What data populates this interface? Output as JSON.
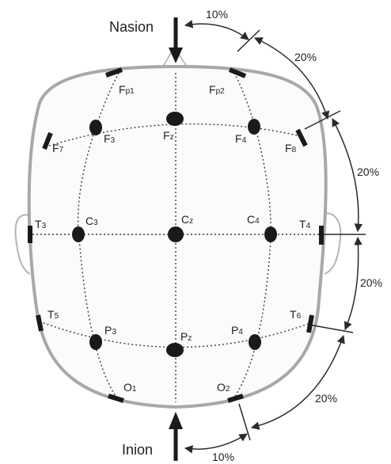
{
  "landmarks": {
    "top": "Nasion",
    "bottom": "Inion"
  },
  "electrodes": {
    "fp1": {
      "main": "F",
      "sub": "p1"
    },
    "fp2": {
      "main": "F",
      "sub": "p2"
    },
    "f7": {
      "main": "F",
      "sub": "7"
    },
    "f3": {
      "main": "F",
      "sub": "3"
    },
    "fz": {
      "main": "F",
      "sub": "z"
    },
    "f4": {
      "main": "F",
      "sub": "4"
    },
    "f8": {
      "main": "F",
      "sub": "8"
    },
    "t3": {
      "main": "T",
      "sub": "3"
    },
    "c3": {
      "main": "C",
      "sub": "3"
    },
    "cz": {
      "main": "C",
      "sub": "z"
    },
    "c4": {
      "main": "C",
      "sub": "4"
    },
    "t4": {
      "main": "T",
      "sub": "4"
    },
    "t5": {
      "main": "T",
      "sub": "5"
    },
    "p3": {
      "main": "P",
      "sub": "3"
    },
    "pz": {
      "main": "P",
      "sub": "z"
    },
    "p4": {
      "main": "P",
      "sub": "4"
    },
    "t6": {
      "main": "T",
      "sub": "6"
    },
    "o1": {
      "main": "O",
      "sub": "1"
    },
    "o2": {
      "main": "O",
      "sub": "2"
    }
  },
  "distances": {
    "top": "10%",
    "upper": "20%",
    "middle_upper": "20%",
    "middle_lower": "20%",
    "lower": "20%",
    "bottom": "10%"
  },
  "colors": {
    "outline": "#a8a8a8",
    "electrode": "#1a1a1a",
    "guide": "#3a3a3a"
  }
}
